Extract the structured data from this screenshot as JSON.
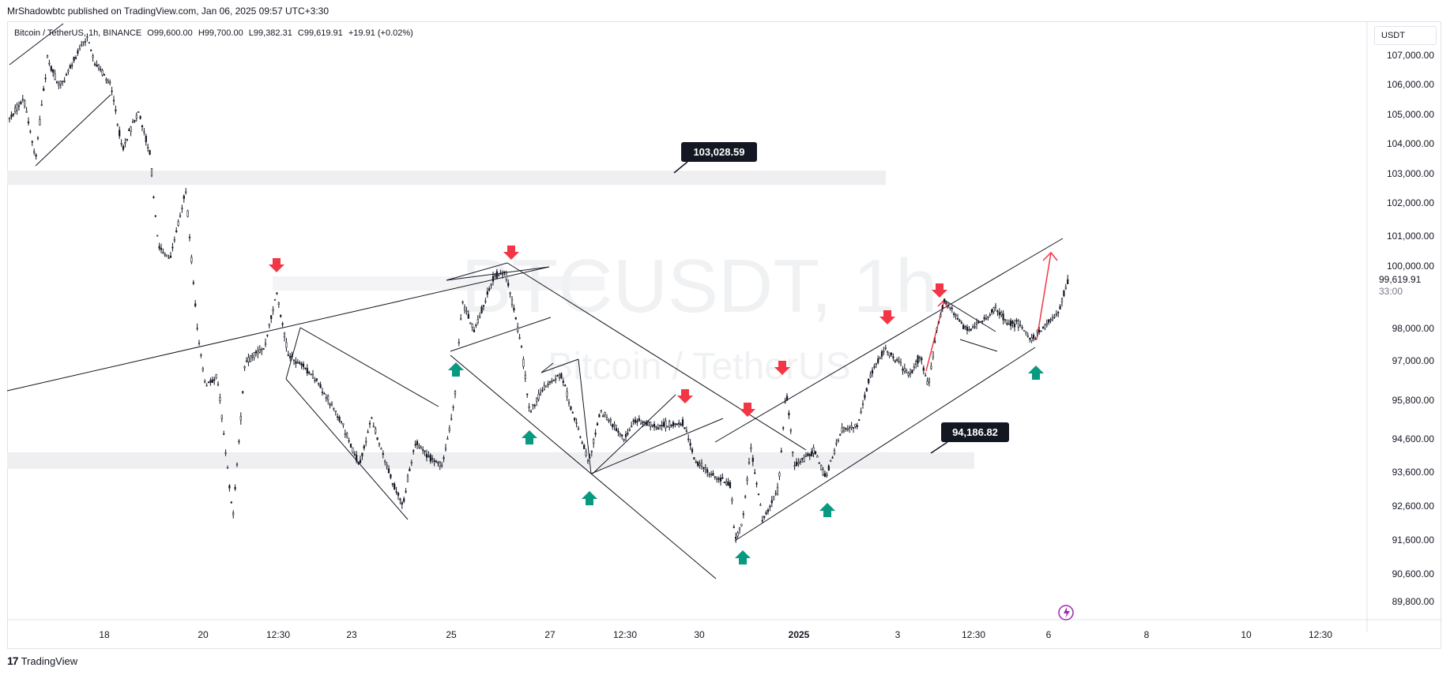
{
  "header": {
    "publisher_text": "MrShadowbtc published on TradingView.com, Jan 06, 2025 09:57 UTC+3:30"
  },
  "symbol_bar": {
    "name": "Bitcoin / TetherUS, 1h, BINANCE",
    "open": "O99,600.00",
    "high": "H99,700.00",
    "low": "L99,382.31",
    "close": "C99,619.91",
    "change": "+19.91 (+0.02%)"
  },
  "currency_label": "USDT",
  "footer": {
    "brand": "TradingView",
    "logo_glyph": "17"
  },
  "chart_data": {
    "type": "candlestick",
    "watermark": {
      "symbol": "BTCUSDT, 1h",
      "subtitle": "Bitcoin / TetherUS"
    },
    "y_ticks": [
      "107,000.00",
      "106,000.00",
      "105,000.00",
      "104,000.00",
      "103,000.00",
      "102,000.00",
      "101,000.00",
      "100,000.00",
      "98,000.00",
      "97,000.00",
      "95,800.00",
      "94,600.00",
      "93,600.00",
      "92,600.00",
      "91,600.00",
      "90,600.00",
      "89,800.00"
    ],
    "x_ticks": [
      "18",
      "20",
      "12:30",
      "23",
      "25",
      "27",
      "12:30",
      "30",
      "2025",
      "3",
      "12:30",
      "6",
      "8",
      "10",
      "12:30"
    ],
    "last_price": {
      "value": "99,619.91",
      "countdown": "33:00"
    },
    "annotations": [
      {
        "type": "price-label",
        "text": "103,028.59",
        "price": 103028.59
      },
      {
        "type": "price-label",
        "text": "94,186.82",
        "price": 94186.82
      }
    ],
    "zones": [
      {
        "name": "upper-zone",
        "price_top": 103100,
        "price_bottom": 102800
      },
      {
        "name": "lower-zone",
        "price_top": 94200,
        "price_bottom": 93700
      }
    ],
    "colors": {
      "up_arrow": "#089981",
      "down_arrow": "#f23645",
      "candles": "#131722",
      "zone": "#efeff1",
      "projection": "#f23645"
    }
  }
}
